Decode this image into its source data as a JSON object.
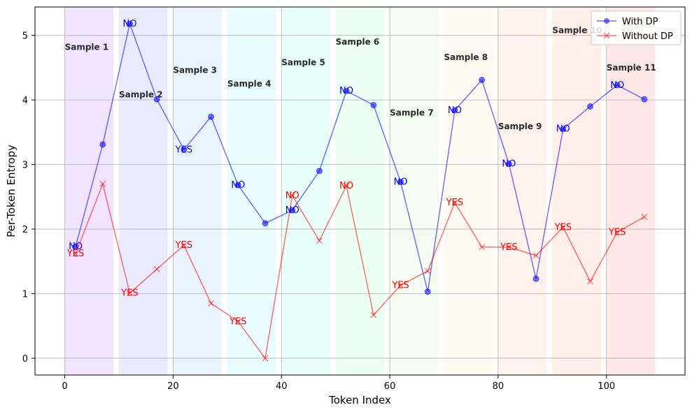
{
  "chart_data": {
    "type": "line",
    "title": "",
    "xlabel": "Token Index",
    "ylabel": "Per-Token Entropy",
    "xlim": [
      -5.5,
      114.5
    ],
    "ylim": [
      -0.26,
      5.44
    ],
    "xticks": [
      0,
      20,
      40,
      60,
      80,
      100
    ],
    "yticks": [
      0,
      1,
      2,
      3,
      4,
      5
    ],
    "grid": true,
    "legend": "top-right",
    "regions": [
      {
        "label": "Sample 1",
        "x0": 0,
        "x1": 9,
        "label_y": 4.82,
        "color": "#d9b3ff"
      },
      {
        "label": "Sample 2",
        "x0": 10,
        "x1": 19,
        "label_y": 4.08,
        "color": "#c6c6ff"
      },
      {
        "label": "Sample 3",
        "x0": 20,
        "x1": 29,
        "label_y": 4.46,
        "color": "#bfdfff"
      },
      {
        "label": "Sample 4",
        "x0": 30,
        "x1": 39,
        "label_y": 4.25,
        "color": "#bff5ff"
      },
      {
        "label": "Sample 5",
        "x0": 40,
        "x1": 49,
        "label_y": 4.58,
        "color": "#bfffef"
      },
      {
        "label": "Sample 6",
        "x0": 50,
        "x1": 59,
        "label_y": 4.9,
        "color": "#c9ffdc"
      },
      {
        "label": "Sample 7",
        "x0": 60,
        "x1": 69,
        "label_y": 3.8,
        "color": "#e2f5dc"
      },
      {
        "label": "Sample 8",
        "x0": 70,
        "x1": 79,
        "label_y": 4.66,
        "color": "#fbf0d9"
      },
      {
        "label": "Sample 9",
        "x0": 80,
        "x1": 89,
        "label_y": 3.59,
        "color": "#ffdccf"
      },
      {
        "label": "Sample 10",
        "x0": 90,
        "x1": 99,
        "label_y": 5.08,
        "color": "#ffcdc0"
      },
      {
        "label": "Sample 11",
        "x0": 100,
        "x1": 109,
        "label_y": 4.5,
        "color": "#ffbdbd"
      }
    ],
    "series": [
      {
        "name": "With DP",
        "color": "#0000ff",
        "marker": "circle",
        "x": [
          2,
          7,
          12,
          17,
          22,
          27,
          32,
          37,
          42,
          47,
          52,
          57,
          62,
          67,
          72,
          77,
          82,
          87,
          92,
          97,
          102,
          107
        ],
        "y": [
          1.73,
          3.31,
          5.18,
          4.01,
          3.23,
          3.74,
          2.68,
          2.09,
          2.29,
          2.9,
          4.14,
          3.92,
          2.73,
          1.03,
          3.84,
          4.31,
          3.01,
          1.23,
          3.55,
          3.9,
          4.23,
          4.01
        ]
      },
      {
        "name": "Without DP",
        "color": "#ff0000",
        "marker": "x",
        "x": [
          2,
          7,
          12,
          17,
          22,
          27,
          32,
          37,
          42,
          47,
          52,
          57,
          62,
          67,
          72,
          77,
          82,
          87,
          92,
          97,
          102,
          107
        ],
        "y": [
          1.62,
          2.7,
          1.01,
          1.38,
          1.75,
          0.85,
          0.57,
          0.0,
          2.52,
          1.82,
          2.67,
          0.67,
          1.13,
          1.35,
          2.41,
          1.72,
          1.72,
          1.59,
          2.03,
          1.19,
          1.95,
          2.19
        ]
      }
    ],
    "annotations": [
      {
        "text": "NO",
        "x": 2,
        "y": 1.73,
        "color": "#0000ff"
      },
      {
        "text": "NO",
        "x": 12,
        "y": 5.18,
        "color": "#0000ff"
      },
      {
        "text": "YES",
        "x": 22,
        "y": 3.23,
        "color": "#0000ff"
      },
      {
        "text": "NO",
        "x": 32,
        "y": 2.68,
        "color": "#0000ff"
      },
      {
        "text": "NO",
        "x": 42,
        "y": 2.29,
        "color": "#0000ff"
      },
      {
        "text": "NO",
        "x": 52,
        "y": 4.14,
        "color": "#0000ff"
      },
      {
        "text": "NO",
        "x": 62,
        "y": 2.73,
        "color": "#0000ff"
      },
      {
        "text": "NO",
        "x": 72,
        "y": 3.84,
        "color": "#0000ff"
      },
      {
        "text": "NO",
        "x": 82,
        "y": 3.01,
        "color": "#0000ff"
      },
      {
        "text": "NO",
        "x": 92,
        "y": 3.55,
        "color": "#0000ff"
      },
      {
        "text": "NO",
        "x": 102,
        "y": 4.23,
        "color": "#0000ff"
      },
      {
        "text": "YES",
        "x": 2,
        "y": 1.62,
        "color": "#ff0000"
      },
      {
        "text": "YES",
        "x": 12,
        "y": 1.01,
        "color": "#ff0000"
      },
      {
        "text": "YES",
        "x": 22,
        "y": 1.75,
        "color": "#ff0000"
      },
      {
        "text": "YES",
        "x": 32,
        "y": 0.57,
        "color": "#ff0000"
      },
      {
        "text": "NO",
        "x": 42,
        "y": 2.52,
        "color": "#ff0000"
      },
      {
        "text": "NO",
        "x": 52,
        "y": 2.67,
        "color": "#ff0000"
      },
      {
        "text": "YES",
        "x": 62,
        "y": 1.13,
        "color": "#ff0000"
      },
      {
        "text": "YES",
        "x": 72,
        "y": 2.41,
        "color": "#ff0000"
      },
      {
        "text": "YES",
        "x": 82,
        "y": 1.72,
        "color": "#ff0000"
      },
      {
        "text": "YES",
        "x": 92,
        "y": 2.03,
        "color": "#ff0000"
      },
      {
        "text": "YES",
        "x": 102,
        "y": 1.95,
        "color": "#ff0000"
      }
    ]
  }
}
